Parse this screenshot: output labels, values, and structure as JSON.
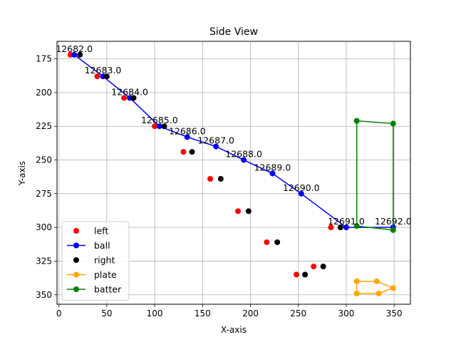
{
  "chart_data": {
    "type": "scatter",
    "title": "Side View",
    "xlabel": "X-axis",
    "ylabel": "Y-axis",
    "xlim": [
      -2,
      367
    ],
    "ylim": [
      357,
      162
    ],
    "y_inverted": true,
    "xticks": [
      0,
      50,
      100,
      150,
      200,
      250,
      300,
      350
    ],
    "yticks": [
      175,
      200,
      225,
      250,
      275,
      300,
      325,
      350
    ],
    "grid": true,
    "legend_position": "lower-left",
    "series": [
      {
        "name": "left",
        "style": "points",
        "color": "#ff0000",
        "x": [
          12,
          40,
          68,
          100,
          130,
          158,
          187,
          217,
          248,
          266,
          284
        ],
        "y": [
          172,
          188,
          204,
          225,
          244,
          264,
          288,
          311,
          335,
          329,
          300
        ]
      },
      {
        "name": "ball",
        "style": "line-points",
        "color": "#0000ff",
        "x": [
          16,
          46,
          74,
          105,
          134,
          164,
          193,
          223,
          253,
          300,
          349
        ],
        "y": [
          172,
          188,
          204,
          225,
          233,
          240,
          250,
          260,
          275,
          300,
          300
        ]
      },
      {
        "name": "right",
        "style": "points",
        "color": "#000000",
        "x": [
          22,
          50,
          78,
          110,
          139,
          169,
          198,
          228,
          257,
          276,
          294
        ],
        "y": [
          172,
          188,
          204,
          225,
          244,
          264,
          288,
          311,
          335,
          329,
          300
        ]
      },
      {
        "name": "plate",
        "style": "line-points",
        "color": "#ffa500",
        "x": [
          311,
          332,
          349,
          334,
          311,
          311
        ],
        "y": [
          340,
          340,
          345,
          349,
          349,
          340
        ]
      },
      {
        "name": "batter",
        "style": "line-points",
        "color": "#008000",
        "x": [
          311,
          349,
          349,
          311,
          311
        ],
        "y": [
          221,
          223,
          302,
          299,
          221
        ]
      }
    ],
    "annotations": [
      {
        "text": "12682.0",
        "x": 16,
        "y": 172
      },
      {
        "text": "12683.0",
        "x": 46,
        "y": 188
      },
      {
        "text": "12684.0",
        "x": 74,
        "y": 204
      },
      {
        "text": "12685.0",
        "x": 105,
        "y": 225
      },
      {
        "text": "12686.0",
        "x": 134,
        "y": 233
      },
      {
        "text": "12687.0",
        "x": 164,
        "y": 240
      },
      {
        "text": "12688.0",
        "x": 193,
        "y": 250
      },
      {
        "text": "12689.0",
        "x": 223,
        "y": 260
      },
      {
        "text": "12690.0",
        "x": 253,
        "y": 275
      },
      {
        "text": "12691.0",
        "x": 300,
        "y": 300
      },
      {
        "text": "12692.0",
        "x": 349,
        "y": 300
      }
    ]
  }
}
